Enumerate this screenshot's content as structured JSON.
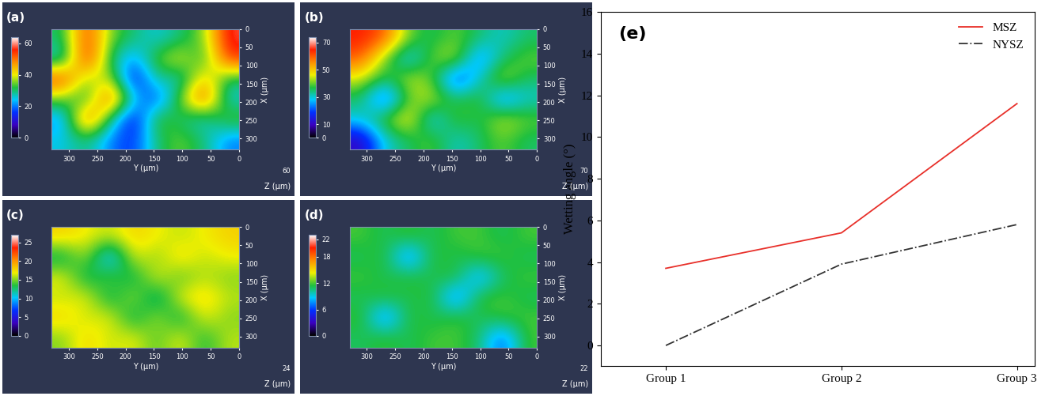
{
  "chart_data": [
    {
      "type": "surface",
      "title": "(a)",
      "x_label": "X (μm)",
      "y_label": "Y (μm)",
      "z_label": "Z (μm)",
      "xlim": [
        0,
        330
      ],
      "xticks": [
        0,
        50,
        100,
        150,
        200,
        250,
        300
      ],
      "ylim": [
        0,
        330
      ],
      "yticks": [
        0,
        50,
        100,
        150,
        200,
        250,
        300
      ],
      "zticks": [
        60
      ],
      "colorbar": {
        "range": [
          0,
          64
        ],
        "ticks": [
          0,
          20,
          40,
          60
        ]
      },
      "cells": [
        [
          30,
          55,
          35,
          30,
          25,
          30,
          35,
          58
        ],
        [
          25,
          58,
          30,
          20,
          35,
          40,
          30,
          55
        ],
        [
          55,
          35,
          40,
          10,
          30,
          25,
          45,
          30
        ],
        [
          35,
          30,
          55,
          25,
          15,
          35,
          55,
          25
        ],
        [
          20,
          55,
          30,
          10,
          35,
          30,
          25,
          35
        ],
        [
          25,
          30,
          20,
          15,
          30,
          35,
          30,
          20
        ]
      ]
    },
    {
      "type": "surface",
      "title": "(b)",
      "x_label": "X (μm)",
      "y_label": "Y (μm)",
      "z_label": "Z (μm)",
      "xlim": [
        0,
        330
      ],
      "xticks": [
        0,
        50,
        100,
        150,
        200,
        250,
        300
      ],
      "ylim": [
        0,
        330
      ],
      "yticks": [
        0,
        50,
        100,
        150,
        200,
        250,
        300
      ],
      "zticks": [
        70
      ],
      "colorbar": {
        "range": [
          0,
          74
        ],
        "ticks": [
          0,
          10,
          30,
          50,
          70
        ]
      },
      "cells": [
        [
          65,
          60,
          40,
          35,
          40,
          35,
          30,
          35
        ],
        [
          60,
          40,
          25,
          40,
          45,
          20,
          35,
          40
        ],
        [
          45,
          35,
          45,
          40,
          15,
          30,
          45,
          35
        ],
        [
          35,
          15,
          40,
          45,
          35,
          40,
          20,
          30
        ],
        [
          30,
          40,
          50,
          25,
          40,
          35,
          45,
          40
        ],
        [
          10,
          30,
          35,
          40,
          30,
          35,
          40,
          35
        ]
      ]
    },
    {
      "type": "surface",
      "title": "(c)",
      "x_label": "X (μm)",
      "y_label": "Y (μm)",
      "z_label": "Z (μm)",
      "xlim": [
        0,
        330
      ],
      "xticks": [
        0,
        50,
        100,
        150,
        200,
        250,
        300
      ],
      "ylim": [
        0,
        330
      ],
      "yticks": [
        0,
        50,
        100,
        150,
        200,
        250,
        300
      ],
      "zticks": [
        24
      ],
      "colorbar": {
        "range": [
          0,
          27
        ],
        "ticks": [
          0,
          5,
          10,
          15,
          20,
          25
        ]
      },
      "cells": [
        [
          18,
          17,
          16,
          18,
          17,
          16,
          17,
          18
        ],
        [
          12,
          16,
          8,
          17,
          15,
          18,
          16,
          17
        ],
        [
          17,
          12,
          15,
          12,
          17,
          14,
          16,
          15
        ],
        [
          16,
          17,
          12,
          16,
          11,
          17,
          18,
          16
        ],
        [
          18,
          16,
          17,
          12,
          16,
          12,
          17,
          15
        ],
        [
          15,
          18,
          16,
          17,
          14,
          17,
          13,
          16
        ]
      ]
    },
    {
      "type": "surface",
      "title": "(d)",
      "x_label": "X (μm)",
      "y_label": "Y (μm)",
      "z_label": "Z (μm)",
      "xlim": [
        0,
        330
      ],
      "xticks": [
        0,
        50,
        100,
        150,
        200,
        250,
        300
      ],
      "ylim": [
        0,
        330
      ],
      "yticks": [
        0,
        50,
        100,
        150,
        200,
        250,
        300
      ],
      "zticks": [
        22
      ],
      "colorbar": {
        "range": [
          0,
          23
        ],
        "ticks": [
          0,
          6,
          12,
          18,
          22
        ]
      },
      "cells": [
        [
          12,
          11,
          12,
          11,
          12,
          12,
          11,
          12
        ],
        [
          11,
          12,
          6,
          12,
          11,
          12,
          12,
          11
        ],
        [
          12,
          11,
          12,
          11,
          12,
          7,
          11,
          12
        ],
        [
          11,
          12,
          11,
          12,
          6,
          12,
          12,
          11
        ],
        [
          12,
          6,
          12,
          11,
          12,
          11,
          12,
          12
        ],
        [
          11,
          12,
          11,
          12,
          12,
          11,
          6,
          12
        ]
      ]
    },
    {
      "type": "line",
      "title": "(e)",
      "y_label": "Wetting angle (°)",
      "categories": [
        "Group 1",
        "Group 2",
        "Group 3"
      ],
      "series": [
        {
          "name": "MSZ",
          "color": "#e8302a",
          "line_style": "solid",
          "values": [
            3.7,
            5.4,
            11.6
          ]
        },
        {
          "name": "NYSZ",
          "color": "#333333",
          "line_style": "dashdot",
          "values": [
            0,
            3.9,
            5.8
          ]
        }
      ],
      "ylim": [
        -1,
        16
      ],
      "yticks": [
        0,
        2,
        4,
        6,
        8,
        10,
        12,
        14,
        16
      ],
      "legend": "upper right"
    }
  ]
}
